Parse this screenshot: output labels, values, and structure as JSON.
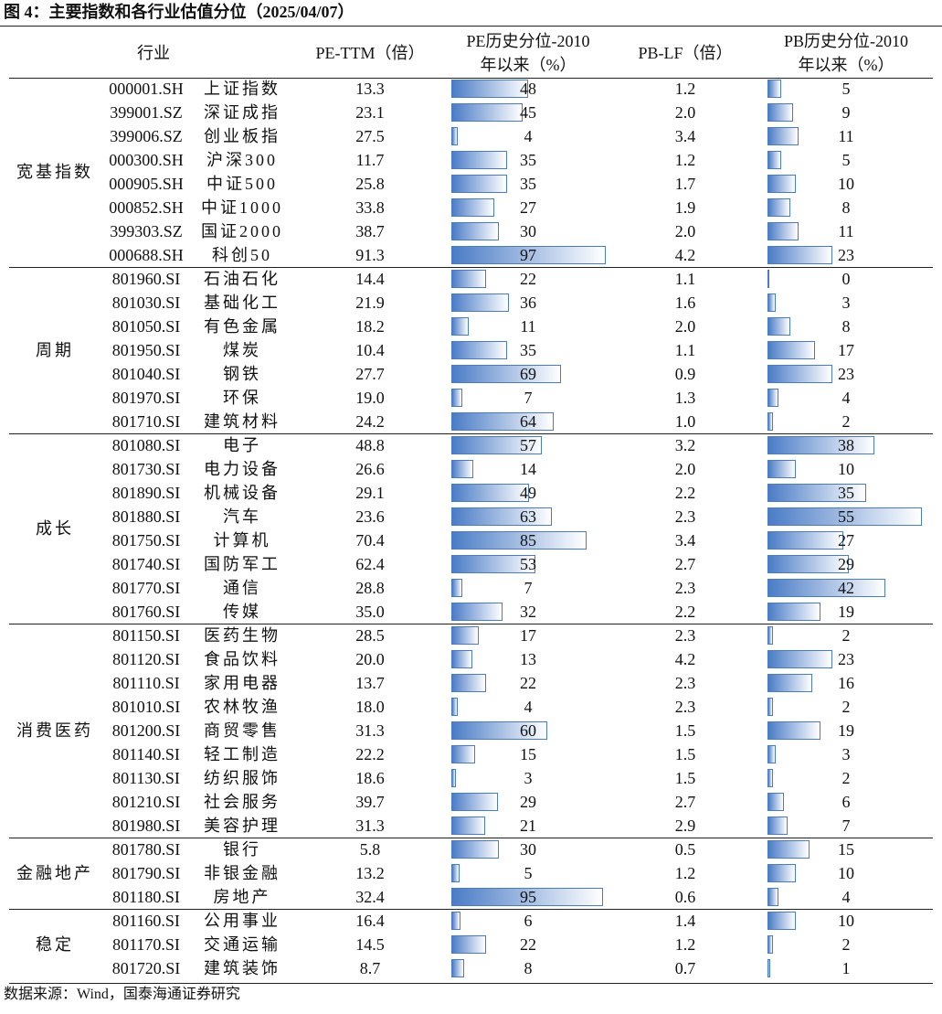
{
  "title": "图 4：主要指数和各行业估值分位（2025/04/07）",
  "header": [
    "行业",
    "PE-TTM（倍）",
    [
      "PE历史分位-2010",
      "年以来（%）"
    ],
    "PB-LF（倍）",
    [
      "PB历史分位-2010",
      "年以来（%）"
    ]
  ],
  "groups": [
    {
      "name": "宽基指数",
      "rows": [
        [
          "000001.SH",
          "上证指数",
          "13.3",
          48,
          "1.2",
          5
        ],
        [
          "399001.SZ",
          "深证成指",
          "23.1",
          45,
          "2.0",
          9
        ],
        [
          "399006.SZ",
          "创业板指",
          "27.5",
          4,
          "3.4",
          11
        ],
        [
          "000300.SH",
          "沪深300",
          "11.7",
          35,
          "1.2",
          5
        ],
        [
          "000905.SH",
          "中证500",
          "25.8",
          35,
          "1.7",
          10
        ],
        [
          "000852.SH",
          "中证1000",
          "33.8",
          27,
          "1.9",
          8
        ],
        [
          "399303.SZ",
          "国证2000",
          "38.7",
          30,
          "2.0",
          11
        ],
        [
          "000688.SH",
          "科创50",
          "91.3",
          97,
          "4.2",
          23
        ]
      ]
    },
    {
      "name": "周期",
      "rows": [
        [
          "801960.SI",
          "石油石化",
          "14.4",
          22,
          "1.1",
          0
        ],
        [
          "801030.SI",
          "基础化工",
          "21.9",
          36,
          "1.6",
          3
        ],
        [
          "801050.SI",
          "有色金属",
          "18.2",
          11,
          "2.0",
          8
        ],
        [
          "801950.SI",
          "煤炭",
          "10.4",
          35,
          "1.1",
          17
        ],
        [
          "801040.SI",
          "钢铁",
          "27.7",
          69,
          "0.9",
          23
        ],
        [
          "801970.SI",
          "环保",
          "19.0",
          7,
          "1.3",
          4
        ],
        [
          "801710.SI",
          "建筑材料",
          "24.2",
          64,
          "1.0",
          2
        ]
      ]
    },
    {
      "name": "成长",
      "rows": [
        [
          "801080.SI",
          "电子",
          "48.8",
          57,
          "3.2",
          38
        ],
        [
          "801730.SI",
          "电力设备",
          "26.6",
          14,
          "2.0",
          10
        ],
        [
          "801890.SI",
          "机械设备",
          "29.1",
          49,
          "2.2",
          35
        ],
        [
          "801880.SI",
          "汽车",
          "23.6",
          63,
          "2.3",
          55
        ],
        [
          "801750.SI",
          "计算机",
          "70.4",
          85,
          "3.4",
          27
        ],
        [
          "801740.SI",
          "国防军工",
          "62.4",
          53,
          "2.7",
          29
        ],
        [
          "801770.SI",
          "通信",
          "28.8",
          7,
          "2.3",
          42
        ],
        [
          "801760.SI",
          "传媒",
          "35.0",
          32,
          "2.2",
          19
        ]
      ]
    },
    {
      "name": "消费医药",
      "rows": [
        [
          "801150.SI",
          "医药生物",
          "28.5",
          17,
          "2.3",
          2
        ],
        [
          "801120.SI",
          "食品饮料",
          "20.0",
          13,
          "4.2",
          23
        ],
        [
          "801110.SI",
          "家用电器",
          "13.7",
          22,
          "2.3",
          16
        ],
        [
          "801010.SI",
          "农林牧渔",
          "18.0",
          4,
          "2.3",
          2
        ],
        [
          "801200.SI",
          "商贸零售",
          "31.3",
          60,
          "1.5",
          19
        ],
        [
          "801140.SI",
          "轻工制造",
          "22.2",
          15,
          "1.5",
          3
        ],
        [
          "801130.SI",
          "纺织服饰",
          "18.6",
          3,
          "1.5",
          2
        ],
        [
          "801210.SI",
          "社会服务",
          "39.7",
          29,
          "2.7",
          6
        ],
        [
          "801980.SI",
          "美容护理",
          "31.3",
          21,
          "2.9",
          7
        ]
      ]
    },
    {
      "name": "金融地产",
      "rows": [
        [
          "801780.SI",
          "银行",
          "5.8",
          30,
          "0.5",
          15
        ],
        [
          "801790.SI",
          "非银金融",
          "13.2",
          5,
          "1.2",
          10
        ],
        [
          "801180.SI",
          "房地产",
          "32.4",
          95,
          "0.6",
          4
        ]
      ]
    },
    {
      "name": "稳定",
      "rows": [
        [
          "801160.SI",
          "公用事业",
          "16.4",
          6,
          "1.4",
          10
        ],
        [
          "801170.SI",
          "交通运输",
          "14.5",
          22,
          "1.2",
          2
        ],
        [
          "801720.SI",
          "建筑装饰",
          "8.7",
          8,
          "0.7",
          1
        ]
      ]
    }
  ],
  "source": "数据来源：Wind，国泰海通证券研究"
}
